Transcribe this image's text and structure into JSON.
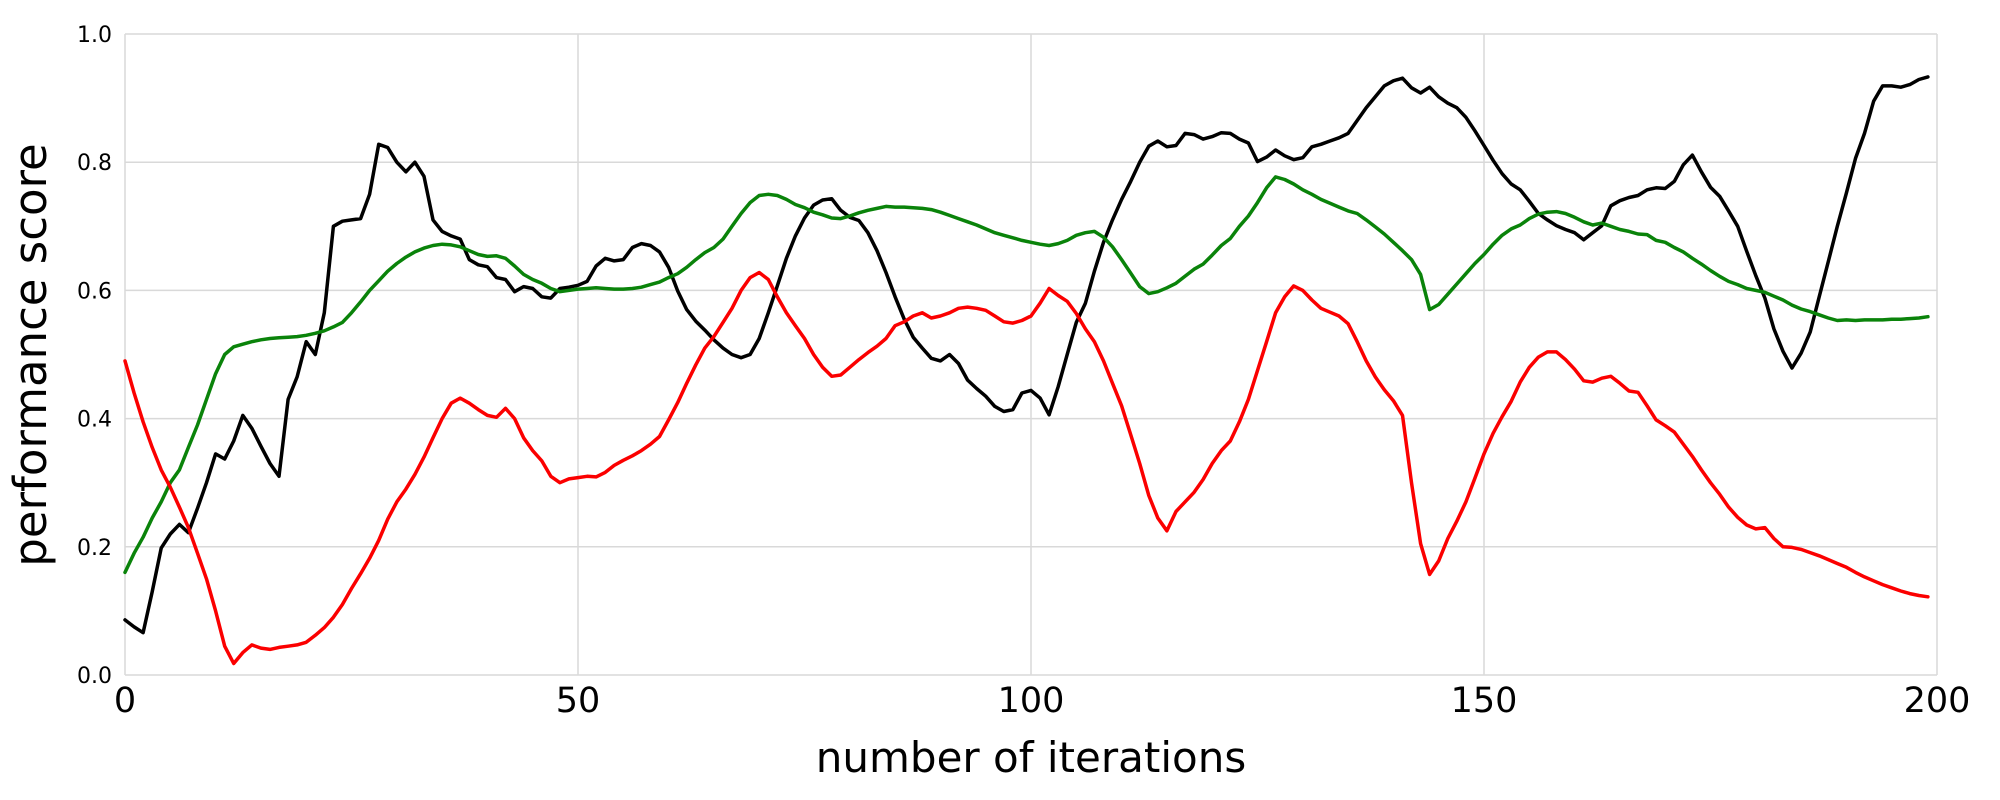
{
  "chart_data": {
    "type": "line",
    "title": "",
    "xlabel": "number of iterations",
    "ylabel": "performance score",
    "xlim": [
      0,
      200
    ],
    "ylim": [
      0.0,
      1.0
    ],
    "xticks": [
      0,
      50,
      100,
      150,
      200
    ],
    "xtick_labels": [
      "0",
      "50",
      "100",
      "150",
      "200"
    ],
    "yticks": [
      0.0,
      0.2,
      0.4,
      0.6,
      0.8,
      1.0
    ],
    "ytick_labels": [
      "0.0",
      "0.2",
      "0.4",
      "0.6",
      "0.8",
      "1.0"
    ],
    "grid": true,
    "legend": "none",
    "background_color": "#ffffff",
    "grid_color": "#d9d9d9",
    "line_width": 3.5,
    "x_start": 0,
    "x_step": 1,
    "series": [
      {
        "name": "black",
        "color": "#000000",
        "values": [
          0.086,
          0.075,
          0.066,
          0.13,
          0.198,
          0.22,
          0.235,
          0.222,
          0.26,
          0.3,
          0.345,
          0.337,
          0.365,
          0.405,
          0.385,
          0.357,
          0.33,
          0.31,
          0.43,
          0.465,
          0.52,
          0.5,
          0.565,
          0.7,
          0.708,
          0.71,
          0.712,
          0.75,
          0.828,
          0.823,
          0.8,
          0.785,
          0.8,
          0.778,
          0.71,
          0.692,
          0.685,
          0.68,
          0.648,
          0.64,
          0.637,
          0.62,
          0.617,
          0.598,
          0.606,
          0.603,
          0.59,
          0.588,
          0.603,
          0.605,
          0.608,
          0.614,
          0.638,
          0.65,
          0.646,
          0.648,
          0.667,
          0.673,
          0.67,
          0.66,
          0.636,
          0.599,
          0.57,
          0.552,
          0.538,
          0.523,
          0.51,
          0.5,
          0.495,
          0.5,
          0.525,
          0.565,
          0.607,
          0.65,
          0.685,
          0.713,
          0.733,
          0.741,
          0.743,
          0.725,
          0.714,
          0.709,
          0.69,
          0.662,
          0.628,
          0.59,
          0.555,
          0.527,
          0.51,
          0.494,
          0.49,
          0.5,
          0.486,
          0.46,
          0.447,
          0.435,
          0.419,
          0.411,
          0.414,
          0.44,
          0.444,
          0.432,
          0.406,
          0.45,
          0.5,
          0.55,
          0.58,
          0.63,
          0.675,
          0.71,
          0.742,
          0.77,
          0.8,
          0.825,
          0.833,
          0.824,
          0.826,
          0.845,
          0.843,
          0.836,
          0.84,
          0.846,
          0.845,
          0.836,
          0.83,
          0.801,
          0.808,
          0.819,
          0.81,
          0.804,
          0.807,
          0.824,
          0.828,
          0.833,
          0.838,
          0.845,
          0.865,
          0.885,
          0.902,
          0.919,
          0.927,
          0.931,
          0.916,
          0.908,
          0.917,
          0.902,
          0.892,
          0.885,
          0.87,
          0.849,
          0.826,
          0.803,
          0.782,
          0.766,
          0.757,
          0.739,
          0.72,
          0.71,
          0.701,
          0.695,
          0.69,
          0.679,
          0.69,
          0.701,
          0.732,
          0.74,
          0.745,
          0.748,
          0.757,
          0.76,
          0.759,
          0.77,
          0.796,
          0.811,
          0.785,
          0.761,
          0.747,
          0.724,
          0.7,
          0.661,
          0.623,
          0.588,
          0.54,
          0.505,
          0.479,
          0.502,
          0.535,
          0.59,
          0.645,
          0.7,
          0.752,
          0.806,
          0.845,
          0.895,
          0.919,
          0.919,
          0.917,
          0.921,
          0.929,
          0.933
        ]
      },
      {
        "name": "green",
        "color": "#0a830a",
        "values": [
          0.16,
          0.19,
          0.215,
          0.245,
          0.27,
          0.3,
          0.32,
          0.355,
          0.39,
          0.43,
          0.47,
          0.5,
          0.512,
          0.516,
          0.52,
          0.523,
          0.525,
          0.526,
          0.527,
          0.528,
          0.53,
          0.533,
          0.537,
          0.543,
          0.55,
          0.565,
          0.582,
          0.6,
          0.615,
          0.63,
          0.642,
          0.652,
          0.66,
          0.666,
          0.67,
          0.672,
          0.671,
          0.668,
          0.662,
          0.656,
          0.653,
          0.654,
          0.65,
          0.638,
          0.625,
          0.617,
          0.611,
          0.603,
          0.598,
          0.6,
          0.602,
          0.603,
          0.604,
          0.603,
          0.602,
          0.602,
          0.603,
          0.605,
          0.609,
          0.613,
          0.62,
          0.626,
          0.636,
          0.648,
          0.659,
          0.667,
          0.68,
          0.7,
          0.72,
          0.737,
          0.748,
          0.75,
          0.748,
          0.742,
          0.734,
          0.729,
          0.722,
          0.718,
          0.713,
          0.712,
          0.716,
          0.721,
          0.725,
          0.728,
          0.731,
          0.73,
          0.73,
          0.729,
          0.728,
          0.726,
          0.722,
          0.717,
          0.712,
          0.707,
          0.702,
          0.696,
          0.69,
          0.686,
          0.682,
          0.678,
          0.675,
          0.672,
          0.67,
          0.673,
          0.678,
          0.686,
          0.69,
          0.692,
          0.683,
          0.668,
          0.648,
          0.627,
          0.606,
          0.595,
          0.598,
          0.604,
          0.611,
          0.622,
          0.633,
          0.641,
          0.655,
          0.67,
          0.681,
          0.7,
          0.716,
          0.737,
          0.76,
          0.777,
          0.773,
          0.766,
          0.757,
          0.75,
          0.742,
          0.736,
          0.73,
          0.724,
          0.72,
          0.71,
          0.699,
          0.688,
          0.675,
          0.662,
          0.648,
          0.625,
          0.57,
          0.578,
          0.594,
          0.61,
          0.626,
          0.642,
          0.656,
          0.672,
          0.686,
          0.696,
          0.702,
          0.712,
          0.719,
          0.722,
          0.723,
          0.72,
          0.714,
          0.707,
          0.702,
          0.705,
          0.7,
          0.695,
          0.692,
          0.688,
          0.687,
          0.678,
          0.675,
          0.667,
          0.66,
          0.65,
          0.641,
          0.631,
          0.622,
          0.614,
          0.609,
          0.603,
          0.6,
          0.597,
          0.591,
          0.585,
          0.577,
          0.571,
          0.567,
          0.562,
          0.557,
          0.553,
          0.554,
          0.553,
          0.554,
          0.554,
          0.554,
          0.555,
          0.555,
          0.556,
          0.557,
          0.559
        ]
      },
      {
        "name": "red",
        "color": "#fb0000",
        "values": [
          0.49,
          0.44,
          0.395,
          0.355,
          0.32,
          0.293,
          0.262,
          0.23,
          0.19,
          0.15,
          0.1,
          0.045,
          0.018,
          0.035,
          0.047,
          0.042,
          0.04,
          0.043,
          0.045,
          0.047,
          0.051,
          0.062,
          0.074,
          0.09,
          0.11,
          0.135,
          0.158,
          0.182,
          0.21,
          0.243,
          0.27,
          0.29,
          0.313,
          0.34,
          0.37,
          0.4,
          0.424,
          0.432,
          0.424,
          0.414,
          0.405,
          0.402,
          0.416,
          0.4,
          0.37,
          0.35,
          0.334,
          0.31,
          0.3,
          0.306,
          0.308,
          0.31,
          0.309,
          0.316,
          0.327,
          0.335,
          0.342,
          0.35,
          0.36,
          0.372,
          0.398,
          0.425,
          0.455,
          0.484,
          0.51,
          0.528,
          0.55,
          0.572,
          0.6,
          0.62,
          0.628,
          0.617,
          0.59,
          0.565,
          0.545,
          0.525,
          0.5,
          0.48,
          0.466,
          0.468,
          0.48,
          0.492,
          0.503,
          0.513,
          0.525,
          0.545,
          0.551,
          0.56,
          0.565,
          0.557,
          0.56,
          0.565,
          0.572,
          0.574,
          0.572,
          0.569,
          0.56,
          0.551,
          0.549,
          0.553,
          0.56,
          0.58,
          0.603,
          0.592,
          0.583,
          0.564,
          0.54,
          0.52,
          0.49,
          0.455,
          0.42,
          0.375,
          0.33,
          0.28,
          0.245,
          0.225,
          0.255,
          0.27,
          0.285,
          0.305,
          0.33,
          0.35,
          0.365,
          0.395,
          0.43,
          0.475,
          0.52,
          0.565,
          0.59,
          0.607,
          0.6,
          0.585,
          0.572,
          0.566,
          0.56,
          0.548,
          0.52,
          0.49,
          0.465,
          0.445,
          0.428,
          0.405,
          0.3,
          0.205,
          0.157,
          0.178,
          0.213,
          0.24,
          0.27,
          0.307,
          0.345,
          0.377,
          0.403,
          0.427,
          0.457,
          0.48,
          0.496,
          0.504,
          0.504,
          0.492,
          0.477,
          0.459,
          0.457,
          0.463,
          0.466,
          0.455,
          0.443,
          0.441,
          0.42,
          0.398,
          0.389,
          0.379,
          0.36,
          0.341,
          0.32,
          0.3,
          0.282,
          0.262,
          0.246,
          0.234,
          0.228,
          0.23,
          0.213,
          0.2,
          0.199,
          0.196,
          0.191,
          0.186,
          0.18,
          0.174,
          0.168,
          0.16,
          0.153,
          0.147,
          0.141,
          0.136,
          0.131,
          0.127,
          0.124,
          0.122
        ]
      }
    ]
  }
}
